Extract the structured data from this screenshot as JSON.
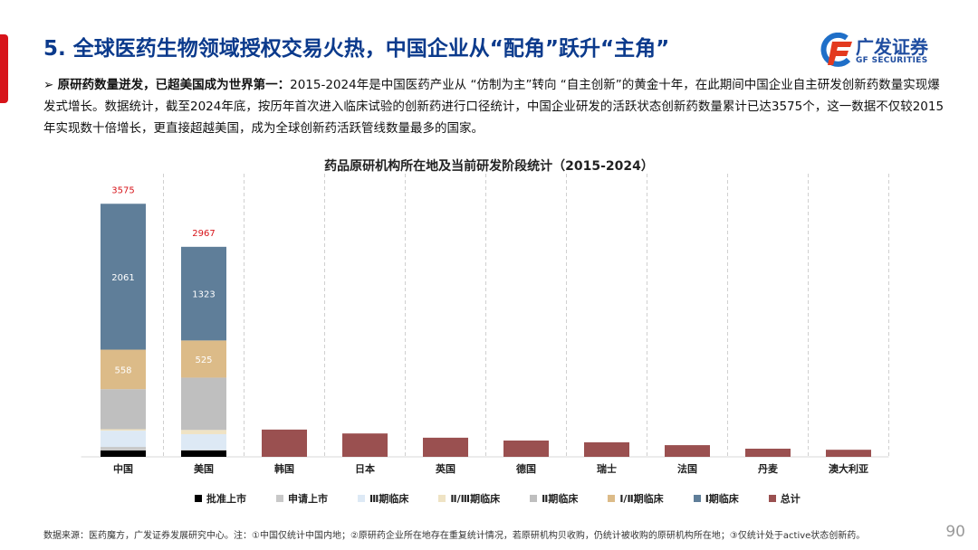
{
  "title": "5. 全球医药生物领域授权交易火热，中国企业从“配角”跃升“主角”",
  "logo": {
    "cn": "广发证券",
    "en": "GF SECURITIES"
  },
  "paragraph": {
    "bullet": "➢",
    "lead": "原研药数量迸发，已超美国成为世界第一：",
    "body": "2015-2024年是中国医药产业从 “仿制为主”转向 “自主创新”的黄金十年，在此期间中国企业自主研发创新药数量实现爆发式增长。数据统计，截至2024年底，按历年首次进入临床试验的创新药进行口径统计，中国企业研发的活跃状态创新药数量累计已达3575个，这一数据不仅较2015年实现数十倍增长，更直接超越美国，成为全球创新药活跃管线数量最多的国家。"
  },
  "chart_data": {
    "type": "bar",
    "title": "药品原研机构所在地及当前研发阶段统计（2015-2024）",
    "categories": [
      "中国",
      "美国",
      "韩国",
      "日本",
      "英国",
      "德国",
      "瑞士",
      "法国",
      "丹麦",
      "澳大利亚"
    ],
    "ylim": [
      0,
      4000
    ],
    "grid": "vertical dashed",
    "legend_position": "bottom",
    "stacked_series": [
      {
        "name": "批准上市",
        "color": "#000000",
        "values": [
          90,
          90
        ]
      },
      {
        "name": "申请上市",
        "color": "#c8c8c8",
        "values": [
          50,
          10
        ]
      },
      {
        "name": "Ⅲ期临床",
        "color": "#dde9f5",
        "values": [
          230,
          220
        ]
      },
      {
        "name": "Ⅱ/Ⅲ期临床",
        "color": "#efe3c4",
        "values": [
          20,
          60
        ]
      },
      {
        "name": "Ⅱ期临床",
        "color": "#bfbfbf",
        "values": [
          566,
          739
        ]
      },
      {
        "name": "Ⅰ/Ⅱ期临床",
        "color": "#dcbb88",
        "values": [
          558,
          525
        ],
        "labels": [
          "558",
          "525"
        ]
      },
      {
        "name": "Ⅰ期临床",
        "color": "#5f7e99",
        "values": [
          2061,
          1323
        ],
        "labels": [
          "2061",
          "1323"
        ]
      }
    ],
    "total_series": {
      "name": "总计",
      "color": "#9a5050",
      "values": [
        null,
        null,
        385,
        330,
        270,
        230,
        205,
        165,
        115,
        100
      ]
    },
    "total_labels": [
      "3575",
      "2967"
    ],
    "total_label_color": "#d7141a"
  },
  "source": "数据来源：医药魔方，广发证券发展研究中心。注：①中国仅统计中国内地；②原研药企业所在地存在重复统计情况，若原研机构贝收购，仍统计被收购的原研机构所在地；③仅统计处于active状态创新药。",
  "page_number": "90"
}
